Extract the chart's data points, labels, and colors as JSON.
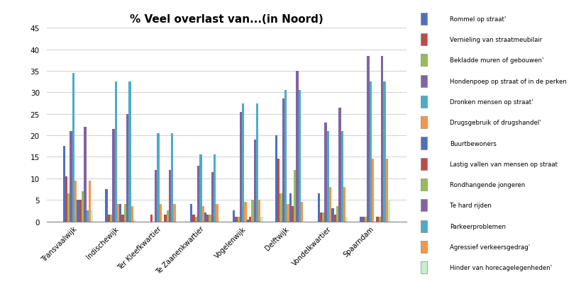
{
  "title": "% Veel overlast van...(in Noord)",
  "categories": [
    "Transvaalwijk",
    "Indischewijk",
    "Ter Kleefkwartier",
    "Te Zaanenkwartier",
    "Vogelenwijk",
    "Delftwijk",
    "Vondelkwartier",
    "Spaarndam"
  ],
  "series_labels": [
    "Rommel op straat'",
    "Vernieling van straatmeubilair",
    "Bekladde muren of gebouwen'",
    "Hondenpoep op straat of in de perken",
    "Dronken mensen op straat'",
    "Drugsgebruik of drugshandel'",
    "Buurtbewoners",
    "Lastig vallen van mensen op straat",
    "Rondhangende jongeren",
    "Te hard rijden",
    "Parkeerproblemen",
    "Agressief verkeersgedrag'",
    "Hinder van horecagelegenheden'"
  ],
  "series_colors": [
    "#4F6FBE",
    "#BE4B48",
    "#9BBB59",
    "#8064A2",
    "#4BACC6",
    "#F79646",
    "#4F6FBE",
    "#BE4B48",
    "#9BBB59",
    "#8064A2",
    "#4BACC6",
    "#F79646",
    "#C6EFCE"
  ],
  "series_data": [
    [
      17.5,
      7.5,
      0,
      4,
      2.5,
      20,
      6.5,
      1
    ],
    [
      10.5,
      1.5,
      1.5,
      1.5,
      1,
      14.5,
      2,
      1
    ],
    [
      6.5,
      1.5,
      0,
      1,
      1,
      6.5,
      2,
      1
    ],
    [
      21,
      21.5,
      12,
      13,
      25.5,
      28.5,
      23,
      38.5
    ],
    [
      34.5,
      32.5,
      20.5,
      15.5,
      27.5,
      30.5,
      21,
      32.5
    ],
    [
      9.5,
      4,
      4,
      3.5,
      4.5,
      4,
      8,
      14.5
    ],
    [
      5,
      4,
      0,
      2,
      0.5,
      6.5,
      3,
      0
    ],
    [
      5,
      1.5,
      1.5,
      1.5,
      1,
      3.5,
      1.5,
      1
    ],
    [
      7,
      4,
      2.5,
      1.5,
      5,
      12,
      3.5,
      1
    ],
    [
      22,
      25,
      12,
      11.5,
      19,
      35,
      26.5,
      38.5
    ],
    [
      2.5,
      32.5,
      20.5,
      15.5,
      27.5,
      30.5,
      21,
      32.5
    ],
    [
      9.5,
      3.5,
      4,
      4,
      5,
      4.5,
      8,
      14.5
    ],
    [
      2.5,
      0.5,
      0,
      0,
      1,
      0,
      1,
      5
    ]
  ],
  "ylim": [
    0,
    45
  ],
  "yticks": [
    0,
    5,
    10,
    15,
    20,
    25,
    30,
    35,
    40,
    45
  ],
  "header_color": "#FFFF00",
  "plot_bg": "#FFFFFF",
  "grid_color": "#D0D0D0"
}
